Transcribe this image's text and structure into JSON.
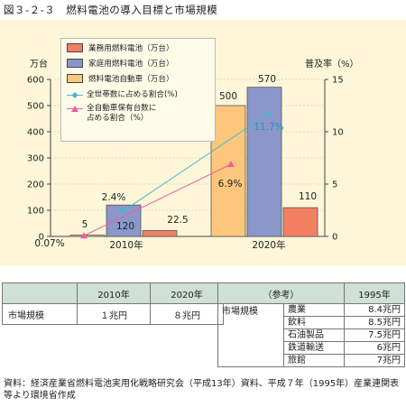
{
  "figure_title": "図３-２-３　燃料電池の導入目標と市場規模",
  "chart_data": {
    "type": "bar",
    "categories": [
      "2010年",
      "2020年"
    ],
    "left_axis_unit": "万台",
    "right_axis_unit": "普及率（%）",
    "ylim": [
      0,
      600
    ],
    "yticks": [
      0,
      100,
      200,
      300,
      400,
      500,
      600
    ],
    "y2lim": [
      0,
      15
    ],
    "y2ticks": [
      0,
      5,
      10,
      15
    ],
    "bar_series": [
      {
        "name": "業務用燃料電池（万台）",
        "color": "#f37f63",
        "values": [
          22.5,
          110
        ],
        "labels": [
          "22.5",
          "110"
        ]
      },
      {
        "name": "家庭用燃料電池（万台）",
        "color": "#8b97c9",
        "values": [
          120,
          570
        ],
        "labels": [
          "120",
          "570"
        ]
      },
      {
        "name": "燃料電池自動車（万台）",
        "color": "#fcc77c",
        "values": [
          5,
          500
        ],
        "labels": [
          "5",
          "500"
        ]
      }
    ],
    "line_series": [
      {
        "name": "全世帯数に占める割合(%)",
        "color": "#4fb3cf",
        "values": [
          2.4,
          11.7
        ],
        "labels": [
          "2.4%",
          "11.7%"
        ]
      },
      {
        "name": "全自動車保有台数に\n占める割合（%）",
        "color": "#ee5f9b",
        "values": [
          0.07,
          6.9
        ],
        "labels": [
          "0.07%",
          "6.9%"
        ]
      }
    ],
    "grid": true,
    "legend_placement": "top-left"
  },
  "market_table": {
    "headers": [
      "",
      "2010年",
      "2020年"
    ],
    "row_label": "市場規模",
    "values": [
      "１兆円",
      "８兆円"
    ]
  },
  "reference_table": {
    "corner": "（参考）",
    "year": "1995年",
    "row_label": "市場規模",
    "industries": [
      {
        "name": "農業",
        "value": "8.4兆円"
      },
      {
        "name": "飲料",
        "value": "8.5兆円"
      },
      {
        "name": "石油製品",
        "value": "7.5兆円"
      },
      {
        "name": "鉄道輸送",
        "value": "6兆円"
      },
      {
        "name": "旅館",
        "value": "7兆円"
      }
    ]
  },
  "source": "資料：経済産業省燃料電池実用化戦略研究会（平成13年）資料、平成７年（1995年）産業連関表等より環境省作成"
}
